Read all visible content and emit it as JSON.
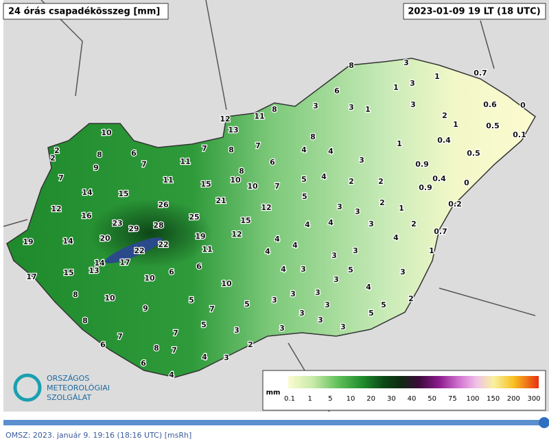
{
  "header": {
    "title": "24 órás csapadékösszeg [mm]",
    "timestamp": "2023-01-09 19 LT (18 UTC)"
  },
  "stations": [
    8,
    3,
    1,
    0.7,
    1,
    3,
    6,
    3,
    3,
    1,
    3,
    0.6,
    0,
    8,
    11,
    12,
    2,
    1,
    0.5,
    13,
    0.1,
    10,
    8,
    0.4,
    1,
    2,
    2,
    6,
    7,
    8,
    7,
    4,
    4,
    0.5,
    8,
    7,
    11,
    6,
    3,
    0.9,
    9,
    8,
    5,
    4,
    2,
    2,
    0.4,
    0,
    7,
    11,
    15,
    10,
    10,
    7,
    0.9,
    14,
    15,
    5,
    21,
    2,
    0.2,
    26,
    12,
    3,
    3,
    1,
    12,
    16,
    25,
    15,
    4,
    4,
    3,
    2,
    23,
    29,
    28,
    12,
    0.7,
    19,
    14,
    20,
    19,
    4,
    4,
    22,
    22,
    11,
    4,
    4,
    3,
    3,
    1,
    14,
    17,
    6,
    4,
    5,
    3,
    3,
    15,
    13,
    6,
    17,
    10,
    3,
    10,
    4,
    8,
    10,
    5,
    3,
    3,
    3,
    2,
    9,
    7,
    5,
    3,
    5,
    3,
    5,
    8,
    3,
    3,
    5,
    3,
    3,
    7,
    7,
    6,
    8,
    7,
    2,
    4,
    3,
    6,
    4
  ],
  "legend": {
    "unit": "mm",
    "ticks": [
      0.1,
      1,
      5,
      10,
      20,
      30,
      40,
      50,
      75,
      100,
      150,
      200,
      300
    ]
  },
  "logo": {
    "lines": [
      "ORSZÁGOS",
      "METEOROLÓGIAI",
      "SZOLGÁLAT"
    ]
  },
  "footer": {
    "text": "OMSZ: 2023. január 9. 19:16 (18:16  UTC)  [msRh]"
  }
}
